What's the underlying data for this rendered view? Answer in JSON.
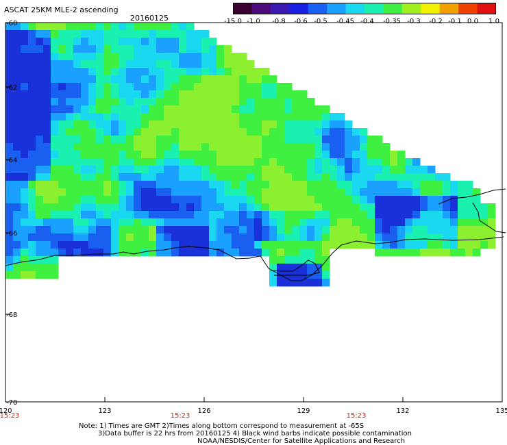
{
  "header": {
    "title": "ASCAT 25KM MLE-2 ascending",
    "date": "20160125"
  },
  "colorbar": {
    "labels": [
      "-15.0",
      "-1.0",
      "-0.8",
      "-0.6",
      "-0.5",
      "-0.45",
      "-0.4",
      "-0.35",
      "-0.3",
      "-0.2",
      "-0.1",
      "0.0",
      "1.0"
    ],
    "colors": [
      "#3a0030",
      "#4a0a7a",
      "#3a1ab0",
      "#1a20e0",
      "#1a60f0",
      "#1aa0ff",
      "#1ad8f0",
      "#1af0b0",
      "#40f040",
      "#a0f020",
      "#f0f000",
      "#f0a000",
      "#f04000",
      "#e01010"
    ]
  },
  "map": {
    "lat_labels": [
      "-60",
      "-62",
      "-64",
      "-66",
      "-68",
      "-70"
    ],
    "lon_labels": [
      "120",
      "123",
      "126",
      "129",
      "132",
      "135"
    ],
    "time_labels": [
      "15:23",
      "15:23",
      "15:23"
    ],
    "time_color": "#cc2200",
    "coast_color": "#000000"
  },
  "notes": {
    "line1": "Note: 1) Times are GMT 2)Times along bottom correspond to measurement at -65S",
    "line2": "3)Data buffer is 22 hrs from 20160125 4) Black wind barbs indicate possible contamination",
    "line3": "NOAA/NESDIS/Center for Satellite Applications and Research"
  }
}
